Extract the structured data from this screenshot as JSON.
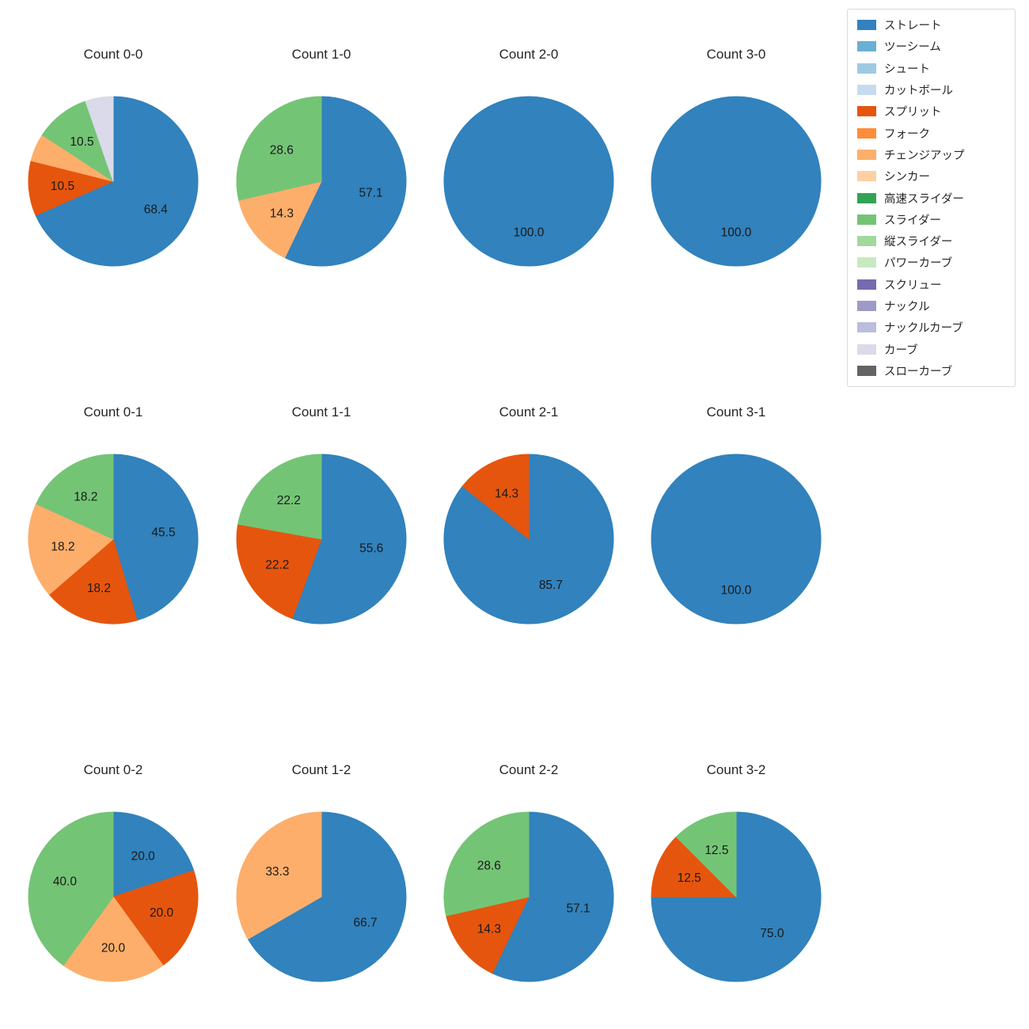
{
  "figure": {
    "background": "#ffffff",
    "text_color": "#262626"
  },
  "legend": {
    "items": [
      {
        "label": "ストレート",
        "color": "#3182bd"
      },
      {
        "label": "ツーシーム",
        "color": "#6baed6"
      },
      {
        "label": "シュート",
        "color": "#9ecae1"
      },
      {
        "label": "カットボール",
        "color": "#c6dbef"
      },
      {
        "label": "スプリット",
        "color": "#e6550d"
      },
      {
        "label": "フォーク",
        "color": "#fd8d3c"
      },
      {
        "label": "チェンジアップ",
        "color": "#fdae6b"
      },
      {
        "label": "シンカー",
        "color": "#fdd0a2"
      },
      {
        "label": "高速スライダー",
        "color": "#31a354"
      },
      {
        "label": "スライダー",
        "color": "#74c476"
      },
      {
        "label": "縦スライダー",
        "color": "#a1d99b"
      },
      {
        "label": "パワーカーブ",
        "color": "#c7e9c0"
      },
      {
        "label": "スクリュー",
        "color": "#756bb1"
      },
      {
        "label": "ナックル",
        "color": "#9e9ac8"
      },
      {
        "label": "ナックルカーブ",
        "color": "#bcbddc"
      },
      {
        "label": "カーブ",
        "color": "#dadaeb"
      },
      {
        "label": "スローカーブ",
        "color": "#636363"
      }
    ]
  },
  "chart_data": [
    {
      "type": "pie",
      "title": "Count 0-0",
      "start_angle": 90,
      "clockwise": true,
      "slices": [
        {
          "label": "ストレート",
          "pct": 68.4,
          "pct_text": "68.4",
          "show_pct": true
        },
        {
          "label": "スプリット",
          "pct": 10.5,
          "pct_text": "10.5",
          "show_pct": true
        },
        {
          "label": "チェンジアップ",
          "pct": 5.3,
          "pct_text": "5.3",
          "show_pct": false
        },
        {
          "label": "スライダー",
          "pct": 10.5,
          "pct_text": "10.5",
          "show_pct": true
        },
        {
          "label": "カーブ",
          "pct": 5.3,
          "pct_text": "5.3",
          "show_pct": false
        }
      ]
    },
    {
      "type": "pie",
      "title": "Count 1-0",
      "start_angle": 90,
      "clockwise": true,
      "slices": [
        {
          "label": "ストレート",
          "pct": 57.1,
          "pct_text": "57.1",
          "show_pct": true
        },
        {
          "label": "チェンジアップ",
          "pct": 14.3,
          "pct_text": "14.3",
          "show_pct": true
        },
        {
          "label": "スライダー",
          "pct": 28.6,
          "pct_text": "28.6",
          "show_pct": true
        }
      ]
    },
    {
      "type": "pie",
      "title": "Count 2-0",
      "start_angle": 90,
      "clockwise": true,
      "slices": [
        {
          "label": "ストレート",
          "pct": 100.0,
          "pct_text": "100.0",
          "show_pct": true
        }
      ]
    },
    {
      "type": "pie",
      "title": "Count 3-0",
      "start_angle": 90,
      "clockwise": true,
      "slices": [
        {
          "label": "ストレート",
          "pct": 100.0,
          "pct_text": "100.0",
          "show_pct": true
        }
      ]
    },
    {
      "type": "pie",
      "title": "Count 0-1",
      "start_angle": 90,
      "clockwise": true,
      "slices": [
        {
          "label": "ストレート",
          "pct": 45.5,
          "pct_text": "45.5",
          "show_pct": true
        },
        {
          "label": "スプリット",
          "pct": 18.2,
          "pct_text": "18.2",
          "show_pct": true
        },
        {
          "label": "チェンジアップ",
          "pct": 18.2,
          "pct_text": "18.2",
          "show_pct": true
        },
        {
          "label": "スライダー",
          "pct": 18.2,
          "pct_text": "18.2",
          "show_pct": true
        }
      ]
    },
    {
      "type": "pie",
      "title": "Count 1-1",
      "start_angle": 90,
      "clockwise": true,
      "slices": [
        {
          "label": "ストレート",
          "pct": 55.6,
          "pct_text": "55.6",
          "show_pct": true
        },
        {
          "label": "スプリット",
          "pct": 22.2,
          "pct_text": "22.2",
          "show_pct": true
        },
        {
          "label": "スライダー",
          "pct": 22.2,
          "pct_text": "22.2",
          "show_pct": true
        }
      ]
    },
    {
      "type": "pie",
      "title": "Count 2-1",
      "start_angle": 90,
      "clockwise": true,
      "slices": [
        {
          "label": "ストレート",
          "pct": 85.7,
          "pct_text": "85.7",
          "show_pct": true
        },
        {
          "label": "スプリット",
          "pct": 14.3,
          "pct_text": "14.3",
          "show_pct": true
        }
      ]
    },
    {
      "type": "pie",
      "title": "Count 3-1",
      "start_angle": 90,
      "clockwise": true,
      "slices": [
        {
          "label": "ストレート",
          "pct": 100.0,
          "pct_text": "100.0",
          "show_pct": true
        }
      ]
    },
    {
      "type": "pie",
      "title": "Count 0-2",
      "start_angle": 90,
      "clockwise": true,
      "slices": [
        {
          "label": "ストレート",
          "pct": 20.0,
          "pct_text": "20.0",
          "show_pct": true
        },
        {
          "label": "スプリット",
          "pct": 20.0,
          "pct_text": "20.0",
          "show_pct": true
        },
        {
          "label": "チェンジアップ",
          "pct": 20.0,
          "pct_text": "20.0",
          "show_pct": true
        },
        {
          "label": "スライダー",
          "pct": 40.0,
          "pct_text": "40.0",
          "show_pct": true
        }
      ]
    },
    {
      "type": "pie",
      "title": "Count 1-2",
      "start_angle": 90,
      "clockwise": true,
      "slices": [
        {
          "label": "ストレート",
          "pct": 66.7,
          "pct_text": "66.7",
          "show_pct": true
        },
        {
          "label": "チェンジアップ",
          "pct": 33.3,
          "pct_text": "33.3",
          "show_pct": true
        }
      ]
    },
    {
      "type": "pie",
      "title": "Count 2-2",
      "start_angle": 90,
      "clockwise": true,
      "slices": [
        {
          "label": "ストレート",
          "pct": 57.1,
          "pct_text": "57.1",
          "show_pct": true
        },
        {
          "label": "スプリット",
          "pct": 14.3,
          "pct_text": "14.3",
          "show_pct": true
        },
        {
          "label": "スライダー",
          "pct": 28.6,
          "pct_text": "28.6",
          "show_pct": true
        }
      ]
    },
    {
      "type": "pie",
      "title": "Count 3-2",
      "start_angle": 90,
      "clockwise": true,
      "slices": [
        {
          "label": "ストレート",
          "pct": 75.0,
          "pct_text": "75.0",
          "show_pct": true
        },
        {
          "label": "スプリット",
          "pct": 12.5,
          "pct_text": "12.5",
          "show_pct": true
        },
        {
          "label": "スライダー",
          "pct": 12.5,
          "pct_text": "12.5",
          "show_pct": true
        }
      ]
    }
  ]
}
